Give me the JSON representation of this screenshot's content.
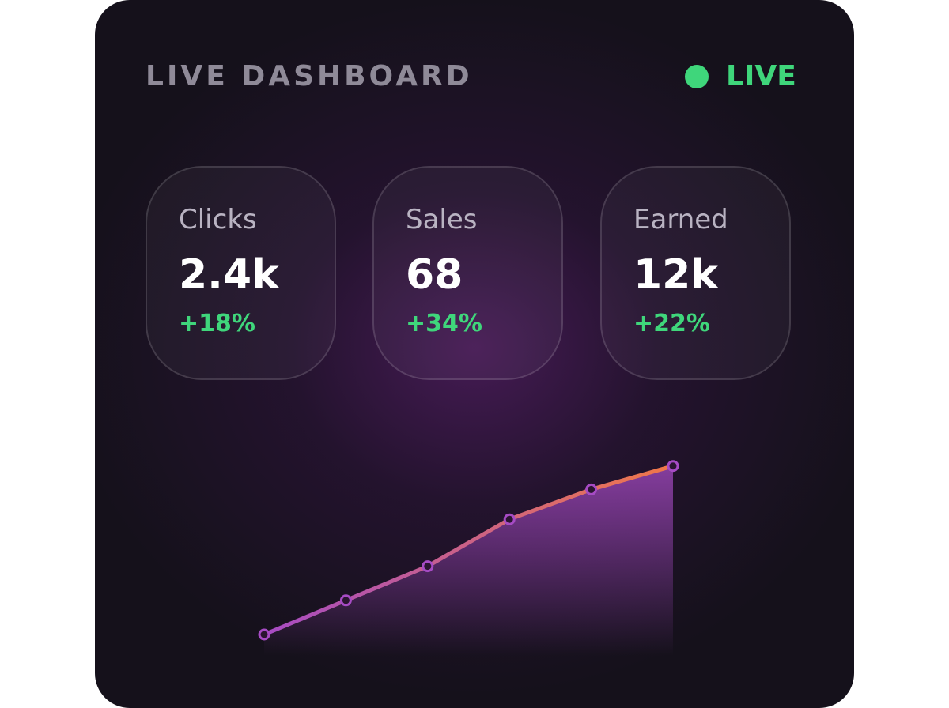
{
  "header": {
    "title": "LIVE DASHBOARD",
    "status": "LIVE"
  },
  "stats": [
    {
      "label": "Clicks",
      "value": "2.4k",
      "change": "+18%"
    },
    {
      "label": "Sales",
      "value": "68",
      "change": "+34%"
    },
    {
      "label": "Earned",
      "value": "12k",
      "change": "+22%"
    }
  ],
  "chart_data": {
    "type": "line",
    "values": [
      10,
      26,
      42,
      64,
      78,
      89
    ],
    "ylim": [
      0,
      100
    ],
    "color": "#a64bc4",
    "color_end": "#f07848",
    "markers": true
  }
}
